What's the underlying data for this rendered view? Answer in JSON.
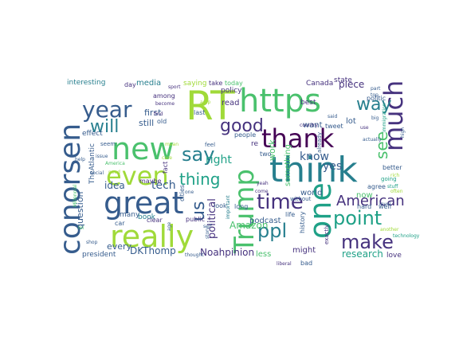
{
  "wordcloud": {
    "palette": {
      "dark_purple": "#440154",
      "indigo": "#46327e",
      "slate_blue": "#365c8d",
      "steel_blue": "#277f8e",
      "teal": "#1fa187",
      "green": "#4ac16d",
      "lime": "#a0da39",
      "yellow": "#fde725",
      "background": "#ffffff"
    },
    "words": [
      {
        "text": "RT"
      },
      {
        "text": "https"
      },
      {
        "text": "think"
      },
      {
        "text": "conorsen"
      },
      {
        "text": "new"
      },
      {
        "text": "great"
      },
      {
        "text": "really"
      },
      {
        "text": "thank"
      },
      {
        "text": "one"
      },
      {
        "text": "much"
      },
      {
        "text": "year"
      },
      {
        "text": "even"
      },
      {
        "text": "Trump"
      },
      {
        "text": "time"
      },
      {
        "text": "good"
      },
      {
        "text": "point"
      },
      {
        "text": "make"
      },
      {
        "text": "say"
      },
      {
        "text": "ppl"
      },
      {
        "text": "will"
      },
      {
        "text": "thing"
      },
      {
        "text": "us"
      },
      {
        "text": "American"
      },
      {
        "text": "see"
      },
      {
        "text": "way"
      },
      {
        "text": "know"
      },
      {
        "text": "yes"
      },
      {
        "text": "right"
      },
      {
        "text": "idea"
      },
      {
        "text": "tech"
      },
      {
        "text": "question"
      },
      {
        "text": "political"
      },
      {
        "text": "work"
      },
      {
        "text": "Amazon"
      },
      {
        "text": "podcast"
      },
      {
        "text": "lot"
      },
      {
        "text": "piece"
      },
      {
        "text": "research"
      },
      {
        "text": "DKThomp"
      },
      {
        "text": "Noahpinion"
      },
      {
        "text": "TheAtlantic"
      },
      {
        "text": "interesting"
      },
      {
        "text": "media"
      },
      {
        "text": "first"
      },
      {
        "text": "still"
      },
      {
        "text": "read"
      },
      {
        "text": "less"
      },
      {
        "text": "might"
      },
      {
        "text": "every"
      },
      {
        "text": "want"
      },
      {
        "text": "world"
      },
      {
        "text": "now"
      },
      {
        "text": "something"
      },
      {
        "text": "Canada"
      },
      {
        "text": "state"
      },
      {
        "text": "best"
      },
      {
        "text": "effect"
      },
      {
        "text": "policy"
      },
      {
        "text": "today"
      },
      {
        "text": "saying"
      },
      {
        "text": "among"
      },
      {
        "text": "president"
      },
      {
        "text": "love"
      },
      {
        "text": "many"
      },
      {
        "text": "book"
      },
      {
        "text": "public"
      },
      {
        "text": "day"
      },
      {
        "text": "take"
      },
      {
        "text": "last"
      },
      {
        "text": "better"
      },
      {
        "text": "politic"
      },
      {
        "text": "agree"
      },
      {
        "text": "hard"
      },
      {
        "text": "well"
      },
      {
        "text": "maybe"
      },
      {
        "text": "clear"
      },
      {
        "text": "cities"
      },
      {
        "text": "long"
      },
      {
        "text": "two"
      },
      {
        "text": "history"
      },
      {
        "text": "without"
      },
      {
        "text": "bad"
      },
      {
        "text": "life"
      },
      {
        "text": "tweet"
      },
      {
        "text": "exactly"
      },
      {
        "text": "already"
      },
      {
        "text": "fact"
      },
      {
        "text": "car"
      },
      {
        "text": "old"
      },
      {
        "text": "seem"
      },
      {
        "text": "issue"
      },
      {
        "text": "look"
      },
      {
        "text": "people"
      },
      {
        "text": "immigration"
      },
      {
        "text": "going"
      },
      {
        "text": "stuff"
      },
      {
        "text": "part"
      },
      {
        "text": "sport"
      },
      {
        "text": "become"
      },
      {
        "text": "feel"
      },
      {
        "text": "thought"
      },
      {
        "text": "top"
      },
      {
        "text": "level"
      },
      {
        "text": "actually"
      },
      {
        "text": "country"
      },
      {
        "text": "liberal"
      },
      {
        "text": "technology"
      },
      {
        "text": "age"
      },
      {
        "text": "self"
      },
      {
        "text": "story"
      },
      {
        "text": "often"
      },
      {
        "text": "rich"
      },
      {
        "text": "help"
      },
      {
        "text": "find"
      },
      {
        "text": "said"
      },
      {
        "text": "high"
      },
      {
        "text": "use"
      },
      {
        "text": "big"
      },
      {
        "text": "another"
      },
      {
        "text": "important"
      },
      {
        "text": "Millennial"
      },
      {
        "text": "lol"
      },
      {
        "text": "need"
      },
      {
        "text": "social"
      },
      {
        "text": "America"
      },
      {
        "text": "shop"
      },
      {
        "text": "amp"
      },
      {
        "text": "yeah"
      },
      {
        "text": "come"
      },
      {
        "text": "re"
      },
      {
        "text": "one"
      },
      {
        "text": "care"
      },
      {
        "text": "mean"
      }
    ]
  }
}
